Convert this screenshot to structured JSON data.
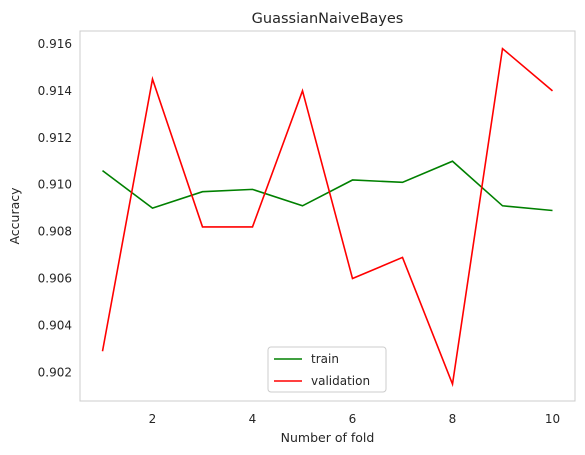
{
  "chart_data": {
    "type": "line",
    "title": "GuassianNaiveBayes",
    "xlabel": "Number of fold",
    "ylabel": "Accuracy",
    "x": [
      1,
      2,
      3,
      4,
      5,
      6,
      7,
      8,
      9,
      10
    ],
    "xlim": [
      0.55,
      10.45
    ],
    "ylim": [
      0.90078,
      0.91655
    ],
    "xticks": [
      2,
      4,
      6,
      8,
      10
    ],
    "xtick_labels": [
      "2",
      "4",
      "6",
      "8",
      "10"
    ],
    "yticks": [
      0.902,
      0.904,
      0.906,
      0.908,
      0.91,
      0.912,
      0.914,
      0.916
    ],
    "ytick_labels": [
      "0.902",
      "0.904",
      "0.906",
      "0.908",
      "0.910",
      "0.912",
      "0.914",
      "0.916"
    ],
    "grid": false,
    "legend_position": "bottom-center",
    "series": [
      {
        "name": "train",
        "color": "#008000",
        "values": [
          0.9106,
          0.909,
          0.9097,
          0.9098,
          0.9091,
          0.9102,
          0.9101,
          0.911,
          0.9091,
          0.9089
        ]
      },
      {
        "name": "validation",
        "color": "#ff0000",
        "values": [
          0.9029,
          0.9145,
          0.9082,
          0.9082,
          0.914,
          0.906,
          0.9069,
          0.9015,
          0.9158,
          0.914
        ]
      }
    ]
  }
}
